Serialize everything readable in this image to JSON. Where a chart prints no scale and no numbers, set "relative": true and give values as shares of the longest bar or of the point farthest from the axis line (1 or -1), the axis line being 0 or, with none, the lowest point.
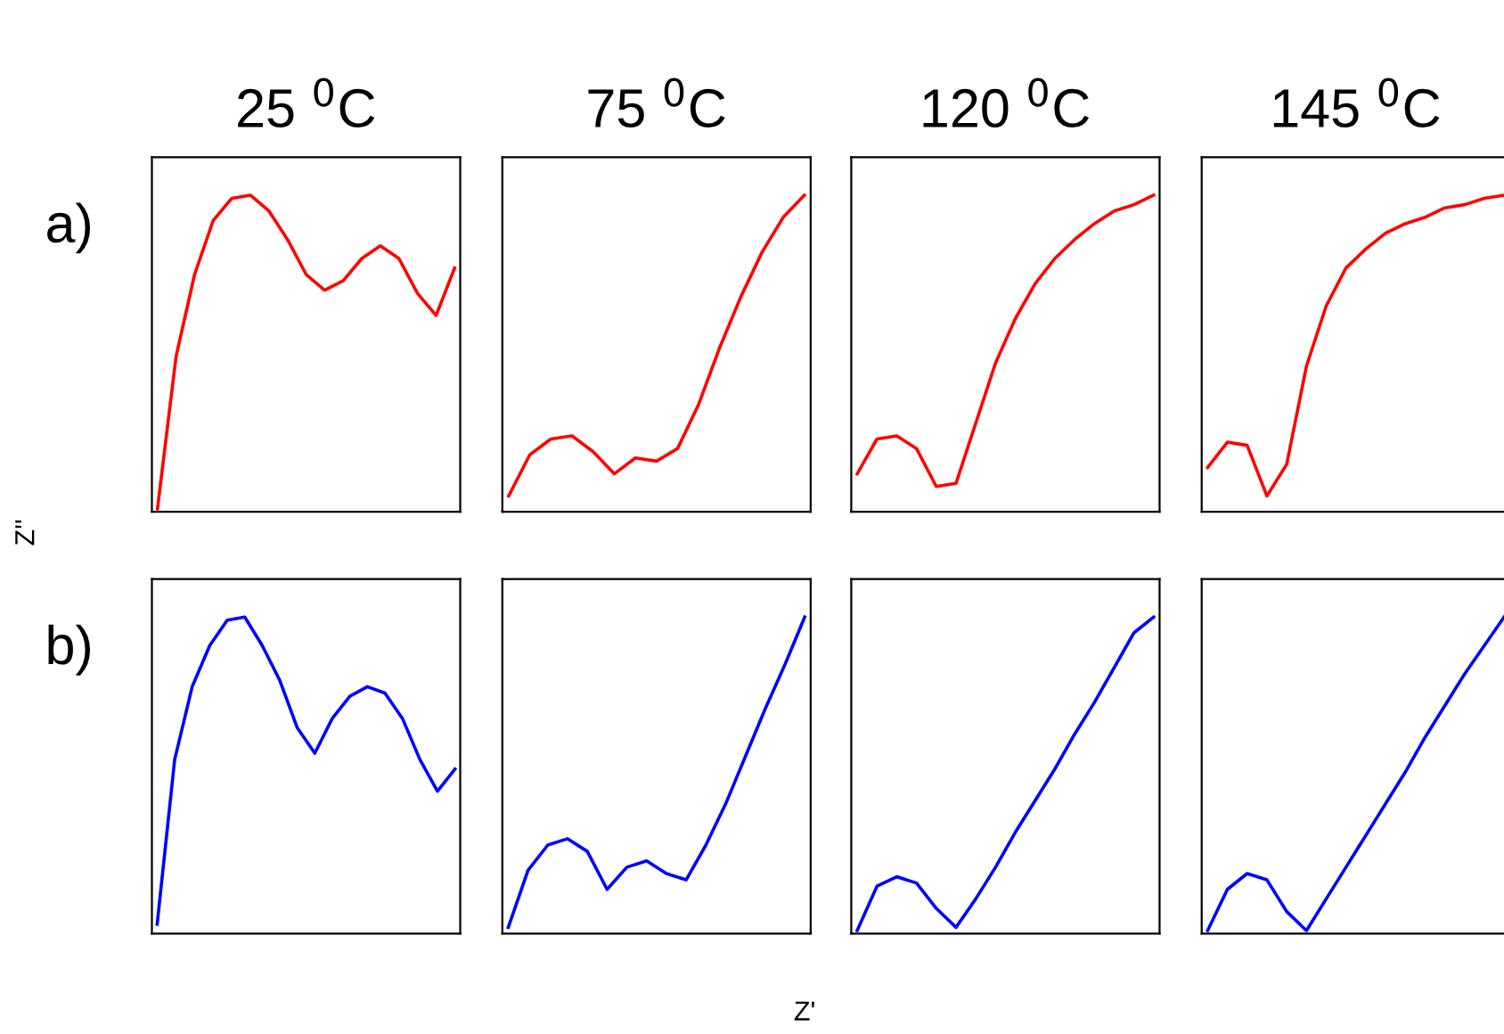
{
  "chart_data": [
    {
      "type": "line",
      "title": "25 $^{0}$C",
      "annotations": [
        "a)"
      ],
      "relative": true,
      "categories": [
        null,
        null,
        null,
        null,
        null,
        null,
        null,
        null,
        null,
        null,
        null,
        null,
        null,
        null,
        null,
        null,
        null
      ],
      "series": [
        {
          "color": "#ff0000",
          "values": [
            0.01,
            0.49,
            0.75,
            0.92,
            0.99,
            1,
            0.95,
            0.86,
            0.75,
            0.7,
            0.73,
            0.8,
            0.84,
            0.8,
            0.69,
            0.62,
            0.77
          ]
        }
      ]
    },
    {
      "type": "line",
      "title": "75 $^{0}$C",
      "relative": true,
      "categories": [
        null,
        null,
        null,
        null,
        null,
        null,
        null,
        null,
        null,
        null,
        null,
        null,
        null,
        null,
        null
      ],
      "series": [
        {
          "color": "#ff0000",
          "values": [
            0.05,
            0.18,
            0.23,
            0.24,
            0.19,
            0.12,
            0.17,
            0.16,
            0.2,
            0.34,
            0.52,
            0.68,
            0.82,
            0.93,
            1
          ]
        }
      ]
    },
    {
      "type": "line",
      "title": "120 $^{0}$C",
      "relative": true,
      "categories": [
        null,
        null,
        null,
        null,
        null,
        null,
        null,
        null,
        null,
        null,
        null,
        null,
        null,
        null,
        null,
        null
      ],
      "series": [
        {
          "color": "#ff0000",
          "values": [
            0.12,
            0.23,
            0.24,
            0.2,
            0.08,
            0.09,
            0.28,
            0.47,
            0.61,
            0.72,
            0.8,
            0.86,
            0.91,
            0.95,
            0.97,
            1
          ]
        }
      ]
    },
    {
      "type": "line",
      "title": "145 $^{0}$C",
      "relative": true,
      "categories": [
        null,
        null,
        null,
        null,
        null,
        null,
        null,
        null,
        null,
        null,
        null,
        null,
        null,
        null,
        null,
        null
      ],
      "series": [
        {
          "color": "#ff0000",
          "values": [
            0.14,
            0.22,
            0.21,
            0.05,
            0.15,
            0.46,
            0.65,
            0.77,
            0.83,
            0.88,
            0.91,
            0.93,
            0.96,
            0.97,
            0.99,
            1
          ]
        }
      ]
    },
    {
      "type": "line",
      "annotations": [
        "b)"
      ],
      "ylabel": "Z''",
      "relative": true,
      "categories": [
        null,
        null,
        null,
        null,
        null,
        null,
        null,
        null,
        null,
        null,
        null,
        null,
        null,
        null,
        null,
        null,
        null,
        null
      ],
      "series": [
        {
          "color": "#0000ff",
          "values": [
            0.03,
            0.55,
            0.78,
            0.91,
            0.99,
            1,
            0.91,
            0.8,
            0.65,
            0.57,
            0.68,
            0.75,
            0.78,
            0.76,
            0.68,
            0.55,
            0.45,
            0.52
          ]
        }
      ]
    },
    {
      "type": "line",
      "xlabel": "Z'",
      "relative": true,
      "categories": [
        null,
        null,
        null,
        null,
        null,
        null,
        null,
        null,
        null,
        null,
        null,
        null,
        null,
        null,
        null,
        null
      ],
      "series": [
        {
          "color": "#0000ff",
          "values": [
            0.02,
            0.2,
            0.28,
            0.3,
            0.26,
            0.14,
            0.21,
            0.23,
            0.19,
            0.17,
            0.28,
            0.41,
            0.56,
            0.71,
            0.85,
            1
          ]
        }
      ]
    },
    {
      "type": "line",
      "relative": true,
      "categories": [
        null,
        null,
        null,
        null,
        null,
        null,
        null,
        null,
        null,
        null,
        null,
        null,
        null,
        null,
        null,
        null
      ],
      "series": [
        {
          "color": "#0000ff",
          "values": [
            0.01,
            0.15,
            0.18,
            0.16,
            0.08,
            0.02,
            0.11,
            0.21,
            0.32,
            0.42,
            0.52,
            0.63,
            0.73,
            0.84,
            0.95,
            1
          ]
        }
      ]
    },
    {
      "type": "line",
      "relative": true,
      "categories": [
        null,
        null,
        null,
        null,
        null,
        null,
        null,
        null,
        null,
        null,
        null,
        null,
        null,
        null,
        null,
        null
      ],
      "series": [
        {
          "color": "#0000ff",
          "values": [
            0.01,
            0.14,
            0.19,
            0.17,
            0.07,
            0.01,
            0.11,
            0.21,
            0.31,
            0.41,
            0.51,
            0.62,
            0.72,
            0.82,
            0.91,
            1
          ]
        }
      ]
    }
  ]
}
